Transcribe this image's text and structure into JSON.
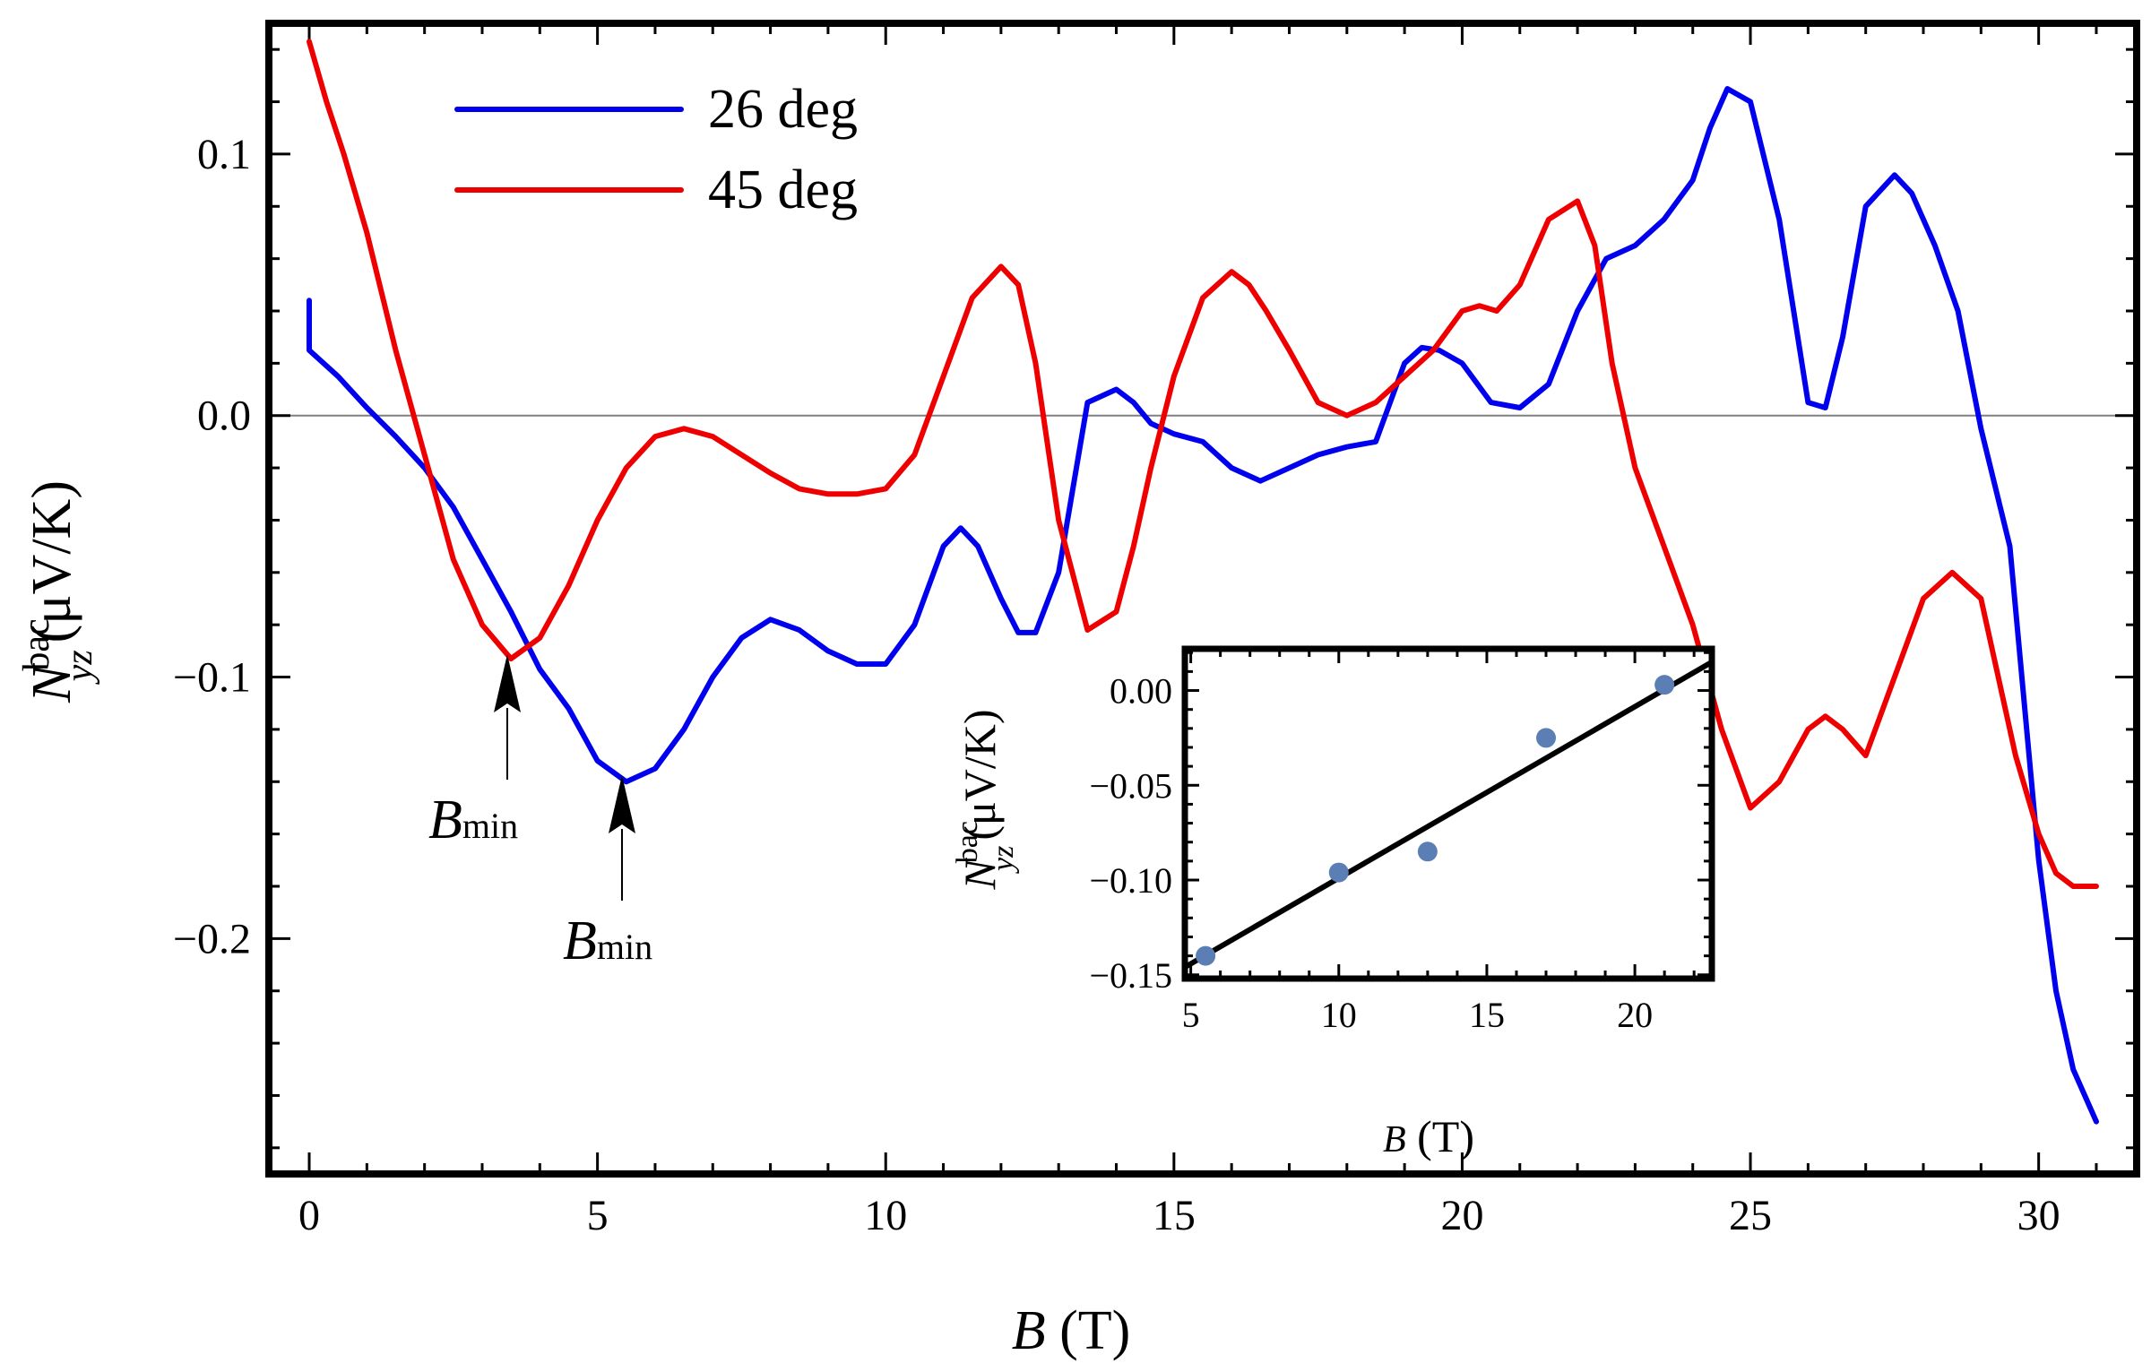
{
  "chart_data": [
    {
      "type": "line",
      "xlabel": "B (T)",
      "xlabel_symbol": "B",
      "xlabel_unit": "(T)",
      "ylabel_symbol": "N",
      "ylabel_superscript": "bac",
      "ylabel_subscript": "yz",
      "ylabel_unit": "(μV/K)",
      "xlim": [
        -0.7,
        31.7
      ],
      "ylim": [
        -0.29,
        0.15
      ],
      "xticks": [
        0,
        5,
        10,
        15,
        20,
        25,
        30
      ],
      "xtick_labels": [
        "0",
        "5",
        "10",
        "15",
        "20",
        "25",
        "30"
      ],
      "yticks": [
        0.1,
        0.0,
        -0.1,
        -0.2
      ],
      "ytick_labels": [
        "0.1",
        "0.0",
        "−0.1",
        "−0.2"
      ],
      "zero_line": true,
      "legend_position": "top-left",
      "series": [
        {
          "name": "26 deg",
          "color": "#0000ee",
          "x": [
            0,
            0,
            0.5,
            1.0,
            1.5,
            2.0,
            2.5,
            3.0,
            3.5,
            4.0,
            4.5,
            5.0,
            5.5,
            6.0,
            6.5,
            7.0,
            7.5,
            8.0,
            8.5,
            9.0,
            9.5,
            10.0,
            10.5,
            11.0,
            11.3,
            11.6,
            12.0,
            12.3,
            12.6,
            13.0,
            13.5,
            14.0,
            14.3,
            14.6,
            15.0,
            15.5,
            16.0,
            16.5,
            17.0,
            17.5,
            18.0,
            18.5,
            19.0,
            19.3,
            19.6,
            20.0,
            20.5,
            21.0,
            21.5,
            22.0,
            22.5,
            23.0,
            23.5,
            24.0,
            24.3,
            24.6,
            25.0,
            25.5,
            26.0,
            26.3,
            26.6,
            27.0,
            27.5,
            27.8,
            28.2,
            28.6,
            29.0,
            29.5,
            30.0,
            30.3,
            30.6,
            31.0
          ],
          "y": [
            0.044,
            0.025,
            0.015,
            0.003,
            -0.008,
            -0.02,
            -0.035,
            -0.055,
            -0.075,
            -0.097,
            -0.112,
            -0.132,
            -0.14,
            -0.135,
            -0.12,
            -0.1,
            -0.085,
            -0.078,
            -0.082,
            -0.09,
            -0.095,
            -0.095,
            -0.08,
            -0.05,
            -0.043,
            -0.05,
            -0.07,
            -0.083,
            -0.083,
            -0.06,
            0.005,
            0.01,
            0.005,
            -0.003,
            -0.007,
            -0.01,
            -0.02,
            -0.025,
            -0.02,
            -0.015,
            -0.012,
            -0.01,
            0.02,
            0.026,
            0.025,
            0.02,
            0.005,
            0.003,
            0.012,
            0.04,
            0.06,
            0.065,
            0.075,
            0.09,
            0.11,
            0.125,
            0.12,
            0.075,
            0.005,
            0.003,
            0.03,
            0.08,
            0.092,
            0.085,
            0.065,
            0.04,
            -0.005,
            -0.05,
            -0.17,
            -0.22,
            -0.25,
            -0.27
          ]
        },
        {
          "name": "45 deg",
          "color": "#ee0000",
          "x": [
            0,
            0.3,
            0.6,
            1.0,
            1.5,
            2.0,
            2.5,
            3.0,
            3.5,
            4.0,
            4.5,
            5.0,
            5.5,
            6.0,
            6.5,
            7.0,
            7.5,
            8.0,
            8.5,
            9.0,
            9.5,
            10.0,
            10.5,
            11.0,
            11.5,
            12.0,
            12.3,
            12.6,
            13.0,
            13.5,
            14.0,
            14.3,
            14.6,
            15.0,
            15.5,
            16.0,
            16.3,
            16.6,
            17.0,
            17.5,
            18.0,
            18.5,
            19.0,
            19.5,
            20.0,
            20.3,
            20.6,
            21.0,
            21.5,
            22.0,
            22.3,
            22.6,
            23.0,
            23.5,
            24.0,
            24.5,
            25.0,
            25.5,
            26.0,
            26.3,
            26.6,
            27.0,
            27.5,
            28.0,
            28.5,
            29.0,
            29.3,
            29.6,
            30.0,
            30.3,
            30.6,
            31.0
          ],
          "y": [
            0.143,
            0.12,
            0.1,
            0.07,
            0.025,
            -0.015,
            -0.055,
            -0.08,
            -0.093,
            -0.085,
            -0.065,
            -0.04,
            -0.02,
            -0.008,
            -0.005,
            -0.008,
            -0.015,
            -0.022,
            -0.028,
            -0.03,
            -0.03,
            -0.028,
            -0.015,
            0.015,
            0.045,
            0.057,
            0.05,
            0.02,
            -0.04,
            -0.082,
            -0.075,
            -0.05,
            -0.02,
            0.015,
            0.045,
            0.055,
            0.05,
            0.04,
            0.025,
            0.005,
            0.0,
            0.005,
            0.015,
            0.025,
            0.04,
            0.042,
            0.04,
            0.05,
            0.075,
            0.082,
            0.065,
            0.02,
            -0.02,
            -0.05,
            -0.08,
            -0.12,
            -0.15,
            -0.14,
            -0.12,
            -0.115,
            -0.12,
            -0.13,
            -0.1,
            -0.07,
            -0.06,
            -0.07,
            -0.1,
            -0.13,
            -0.16,
            -0.175,
            -0.18,
            -0.18
          ]
        }
      ],
      "annotations": [
        {
          "symbol": "B",
          "subscript": "min",
          "x": 3.5,
          "y": -0.093,
          "series": "45 deg"
        },
        {
          "symbol": "B",
          "subscript": "min",
          "x": 5.4,
          "y": -0.14,
          "series": "26 deg"
        }
      ]
    },
    {
      "type": "scatter",
      "role": "inset",
      "xlabel": "B (T)",
      "xlabel_symbol": "B",
      "xlabel_unit": "(T)",
      "ylabel_symbol": "N",
      "ylabel_superscript": "bac",
      "ylabel_subscript": "yz",
      "ylabel_unit": "(μV/K)",
      "xlim": [
        4.8,
        22.6
      ],
      "ylim": [
        -0.152,
        0.022
      ],
      "xticks": [
        5,
        10,
        15,
        20
      ],
      "xtick_labels": [
        "5",
        "10",
        "15",
        "20"
      ],
      "yticks": [
        0.0,
        -0.05,
        -0.1,
        -0.15
      ],
      "ytick_labels": [
        "0.00",
        "−0.05",
        "−0.10",
        "−0.15"
      ],
      "points": {
        "color": "#5b7fb4",
        "x": [
          5.5,
          10.0,
          13.0,
          17.0,
          21.0
        ],
        "y": [
          -0.14,
          -0.096,
          -0.085,
          -0.025,
          0.003
        ]
      },
      "fit_line": {
        "color": "#000000",
        "x": [
          4.8,
          22.6
        ],
        "y": [
          -0.146,
          0.015
        ]
      }
    }
  ]
}
